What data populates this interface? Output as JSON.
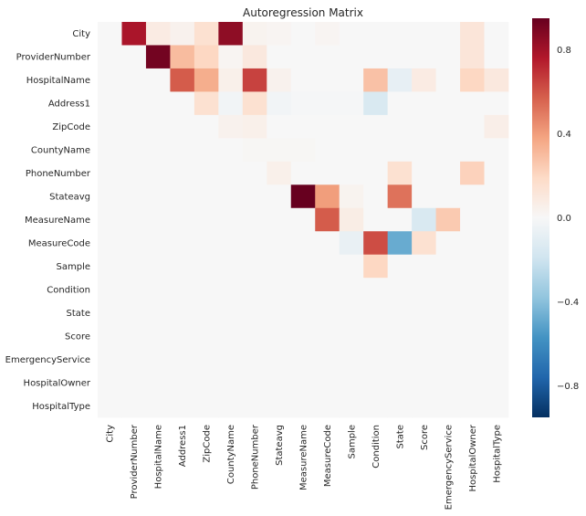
{
  "chart_data": {
    "type": "heatmap",
    "title": "Autoregression Matrix",
    "xlabel": "",
    "ylabel": "",
    "row_labels": [
      "City",
      "ProviderNumber",
      "HospitalName",
      "Address1",
      "ZipCode",
      "CountyName",
      "PhoneNumber",
      "Stateavg",
      "MeasureName",
      "MeasureCode",
      "Sample",
      "Condition",
      "State",
      "Score",
      "EmergencyService",
      "HospitalOwner",
      "HospitalType"
    ],
    "col_labels": [
      "City",
      "ProviderNumber",
      "HospitalName",
      "Address1",
      "ZipCode",
      "CountyName",
      "PhoneNumber",
      "Stateavg",
      "MeasureName",
      "MeasureCode",
      "Sample",
      "Condition",
      "State",
      "Score",
      "EmergencyService",
      "HospitalOwner",
      "HospitalType"
    ],
    "values": [
      [
        0,
        0.78,
        0.08,
        0.04,
        0.15,
        0.85,
        0.03,
        0.02,
        0,
        0.02,
        0,
        0,
        0,
        0,
        0,
        0.12,
        0
      ],
      [
        0,
        0,
        0.92,
        0.3,
        0.2,
        0.02,
        0.1,
        0,
        0,
        0,
        0,
        0,
        0,
        0,
        0,
        0.12,
        0
      ],
      [
        0,
        0,
        0,
        0.58,
        0.35,
        0.05,
        0.65,
        0.04,
        0,
        0,
        0,
        0.28,
        -0.08,
        0.08,
        0,
        0.2,
        0.1
      ],
      [
        0,
        0,
        0,
        0,
        0.15,
        -0.03,
        0.15,
        -0.03,
        -0.01,
        -0.01,
        -0.01,
        -0.15,
        0,
        0,
        0,
        0,
        0
      ],
      [
        0,
        0,
        0,
        0,
        0,
        0.04,
        0.05,
        0,
        0,
        0,
        0,
        0,
        0,
        0,
        0,
        0,
        0.06
      ],
      [
        0,
        0,
        0,
        0,
        0,
        0,
        0.01,
        0.01,
        0.01,
        0,
        0,
        0,
        0,
        0,
        0,
        0,
        0
      ],
      [
        0,
        0,
        0,
        0,
        0,
        0,
        0,
        0.05,
        0,
        0,
        0,
        0,
        0.15,
        0,
        0,
        0.22,
        0
      ],
      [
        0,
        0,
        0,
        0,
        0,
        0,
        0,
        0,
        0.95,
        0.4,
        0.03,
        0,
        0.52,
        0,
        0,
        0,
        0
      ],
      [
        0,
        0,
        0,
        0,
        0,
        0,
        0,
        0,
        0,
        0.58,
        0.07,
        0,
        0,
        -0.15,
        0.25,
        0,
        0
      ],
      [
        0,
        0,
        0,
        0,
        0,
        0,
        0,
        0,
        0,
        0,
        -0.07,
        0.62,
        -0.48,
        0.15,
        0,
        0,
        0
      ],
      [
        0,
        0,
        0,
        0,
        0,
        0,
        0,
        0,
        0,
        0,
        0,
        0.2,
        0,
        0,
        0,
        0,
        0
      ],
      [
        0,
        0,
        0,
        0,
        0,
        0,
        0,
        0,
        0,
        0,
        0,
        0,
        0,
        0,
        0,
        0,
        0
      ],
      [
        0,
        0,
        0,
        0,
        0,
        0,
        0,
        0,
        0,
        0,
        0,
        0,
        0,
        0,
        0,
        0,
        0
      ],
      [
        0,
        0,
        0,
        0,
        0,
        0,
        0,
        0,
        0,
        0,
        0,
        0,
        0,
        0,
        0,
        0,
        0
      ],
      [
        0,
        0,
        0,
        0,
        0,
        0,
        0,
        0,
        0,
        0,
        0,
        0,
        0,
        0,
        0,
        0,
        0
      ],
      [
        0,
        0,
        0,
        0,
        0,
        0,
        0,
        0,
        0,
        0,
        0,
        0,
        0,
        0,
        0,
        0,
        0
      ],
      [
        0,
        0,
        0,
        0,
        0,
        0,
        0,
        0,
        0,
        0,
        0,
        0,
        0,
        0,
        0,
        0,
        0
      ]
    ],
    "colormap": "RdBu_r",
    "vmin": -0.95,
    "vmax": 0.95,
    "colorbar": {
      "ticks": [
        0.8,
        0.4,
        0.0,
        -0.4,
        -0.8
      ],
      "tick_labels": [
        "0.8",
        "0.4",
        "0.0",
        "−0.4",
        "−0.8"
      ]
    },
    "grid": false,
    "legend": "colorbar-right",
    "colors": {
      "low": "#053061",
      "mid": "#f7f7f7",
      "high": "#67001f",
      "background": "#ffffff",
      "text": "#262626"
    }
  }
}
